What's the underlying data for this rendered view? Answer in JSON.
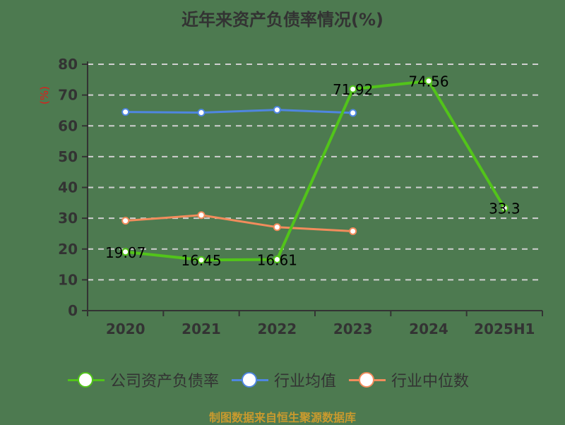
{
  "title": "近年来资产负债率情况(%)",
  "unit_label": "(%)",
  "source": "制图数据来自恒生聚源数据库",
  "colors": {
    "background": "#4d7a50",
    "company": "#52c41a",
    "industry_avg": "#4f86e0",
    "industry_median": "#f28c5c",
    "grid": "#d0d0d0",
    "axis": "#333333"
  },
  "legend": [
    {
      "label": "公司资产负债率",
      "color": "#52c41a"
    },
    {
      "label": "行业均值",
      "color": "#4f86e0"
    },
    {
      "label": "行业中位数",
      "color": "#f28c5c"
    }
  ],
  "chart_data": {
    "type": "line",
    "title": "近年来资产负债率情况(%)",
    "xlabel": "",
    "ylabel": "(%)",
    "ylim": [
      0,
      80
    ],
    "yticks": [
      0,
      10,
      20,
      30,
      40,
      50,
      60,
      70,
      80
    ],
    "grid": true,
    "legend_position": "bottom",
    "categories": [
      "2020",
      "2021",
      "2022",
      "2023",
      "2024",
      "2025H1"
    ],
    "series": [
      {
        "name": "公司资产负债率",
        "values": [
          19.07,
          16.45,
          16.61,
          71.92,
          74.56,
          33.3
        ],
        "labels": [
          "19.07",
          "16.45",
          "16.61",
          "71.92",
          "74.56",
          "33.3"
        ]
      },
      {
        "name": "行业均值",
        "values": [
          64.5,
          64.3,
          65.2,
          64.2,
          null,
          null
        ]
      },
      {
        "name": "行业中位数",
        "values": [
          29.2,
          31.0,
          27.1,
          25.8,
          null,
          null
        ]
      }
    ]
  }
}
